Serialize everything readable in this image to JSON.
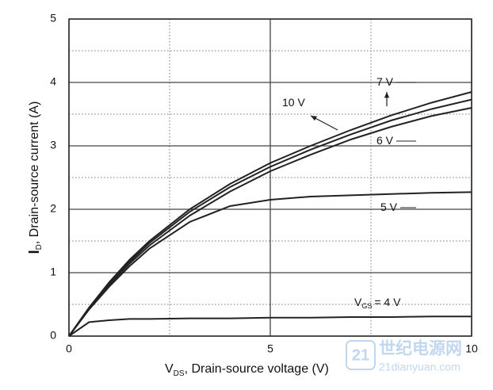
{
  "chart_data": {
    "type": "line",
    "x_label": {
      "main": "V",
      "sub": "DS",
      "rest": ", Drain-source voltage (V)"
    },
    "y_label": {
      "main": "I",
      "sub": "D",
      "rest": ", Drain-source current (A)"
    },
    "x": [
      0,
      0.5,
      1,
      1.5,
      2,
      3,
      4,
      5,
      6,
      7,
      8,
      9,
      10
    ],
    "series": [
      {
        "name": "10 V",
        "color": "#222222",
        "values": [
          0,
          0.45,
          0.85,
          1.2,
          1.5,
          2.0,
          2.4,
          2.73,
          3.0,
          3.25,
          3.48,
          3.68,
          3.85
        ]
      },
      {
        "name": "7 V",
        "color": "#222222",
        "values": [
          0,
          0.44,
          0.83,
          1.17,
          1.47,
          1.96,
          2.35,
          2.67,
          2.94,
          3.18,
          3.4,
          3.58,
          3.73
        ]
      },
      {
        "name": "6 V",
        "color": "#222222",
        "values": [
          0,
          0.43,
          0.81,
          1.14,
          1.43,
          1.9,
          2.28,
          2.6,
          2.86,
          3.1,
          3.3,
          3.47,
          3.6
        ]
      },
      {
        "name": "5 V",
        "color": "#222222",
        "values": [
          0,
          0.42,
          0.78,
          1.1,
          1.38,
          1.8,
          2.05,
          2.15,
          2.2,
          2.22,
          2.24,
          2.26,
          2.27
        ]
      },
      {
        "name": "= 4 V",
        "label_main": "V",
        "label_sub": "GS",
        "color": "#222222",
        "values": [
          0,
          0.22,
          0.25,
          0.27,
          0.27,
          0.28,
          0.28,
          0.29,
          0.29,
          0.3,
          0.3,
          0.31,
          0.31
        ]
      }
    ],
    "xlim": [
      0,
      10
    ],
    "xticks": [
      0,
      5,
      10
    ],
    "xminor": [
      2.5,
      7.5
    ],
    "ylim": [
      0,
      5
    ],
    "yticks": [
      0,
      1,
      2,
      3,
      4,
      5
    ],
    "yminor": [
      0.5,
      1.5,
      2.5,
      3.5,
      4.5
    ],
    "grid": true,
    "watermark": {
      "cn": "世纪电源网",
      "num": "21",
      "url": "21dianyuan.com"
    }
  }
}
